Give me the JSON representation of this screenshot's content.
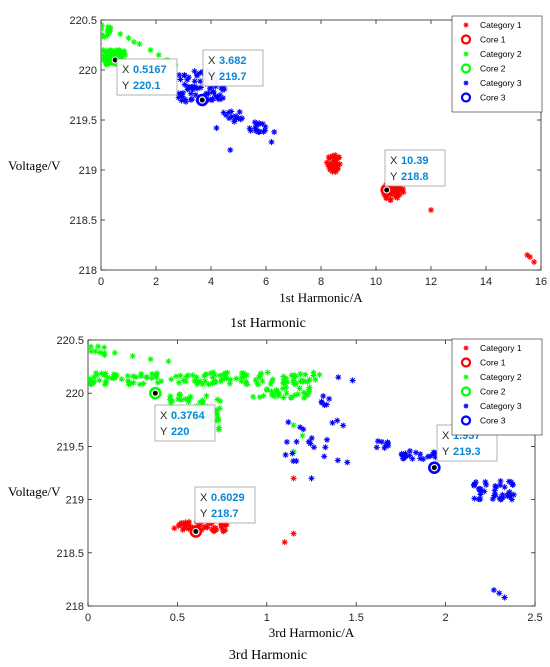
{
  "chart_data": [
    {
      "type": "scatter",
      "caption": "1st Harmonic",
      "xlabel": "1st Harmonic/A",
      "ylabel": "Voltage/V",
      "xlim": [
        0,
        16
      ],
      "ylim": [
        218,
        220.5
      ],
      "xticks": [
        "0",
        "2",
        "4",
        "6",
        "8",
        "10",
        "12",
        "14",
        "16"
      ],
      "yticks": [
        "218",
        "218.5",
        "219",
        "219.5",
        "220",
        "220.5"
      ],
      "legend_position": "top-right",
      "legend": [
        "Category 1",
        "Core 1",
        "Category 2",
        "Core 2",
        "Category 3",
        "Core 3"
      ],
      "colors": {
        "category1": "#ff0000",
        "category2": "#00ff00",
        "category3": "#0000ff"
      },
      "series": [
        {
          "name": "Category 1",
          "marker": "*",
          "color": "#ff0000",
          "clusters": [
            {
              "x": [
                8.2,
                8.7
              ],
              "y": [
                218.98,
                219.15
              ],
              "n": 40
            },
            {
              "x": [
                10.3,
                11.0
              ],
              "y": [
                218.7,
                218.86
              ],
              "n": 45
            }
          ],
          "points": [
            [
              12.0,
              218.6
            ],
            [
              15.6,
              218.13
            ],
            [
              15.75,
              218.08
            ],
            [
              15.5,
              218.15
            ]
          ]
        },
        {
          "name": "Category 2",
          "marker": "*",
          "color": "#00ff00",
          "clusters": [
            {
              "x": [
                0.05,
                0.9
              ],
              "y": [
                220.05,
                220.2
              ],
              "n": 70
            },
            {
              "x": [
                0.0,
                0.35
              ],
              "y": [
                220.33,
                220.45
              ],
              "n": 14
            }
          ],
          "points": [
            [
              1.0,
              220.32
            ],
            [
              1.4,
              220.26
            ],
            [
              1.8,
              220.2
            ],
            [
              2.1,
              220.15
            ],
            [
              2.4,
              220.1
            ],
            [
              2.7,
              220.05
            ],
            [
              0.7,
              220.36
            ],
            [
              1.2,
              220.28
            ]
          ]
        },
        {
          "name": "Category 3",
          "marker": "*",
          "color": "#0000ff",
          "clusters": [
            {
              "x": [
                2.8,
                4.5
              ],
              "y": [
                219.68,
                220.0
              ],
              "n": 70
            },
            {
              "x": [
                5.4,
                6.0
              ],
              "y": [
                219.38,
                219.48
              ],
              "n": 16
            },
            {
              "x": [
                4.4,
                5.2
              ],
              "y": [
                219.48,
                219.6
              ],
              "n": 12
            }
          ],
          "points": [
            [
              4.7,
              219.2
            ],
            [
              6.2,
              219.28
            ],
            [
              6.3,
              219.38
            ],
            [
              4.2,
              219.42
            ],
            [
              5.0,
              219.52
            ]
          ]
        },
        {
          "name": "Core 1",
          "marker": "o",
          "color": "#ff0000",
          "points": [
            [
              10.39,
              218.8
            ]
          ]
        },
        {
          "name": "Core 2",
          "marker": "o",
          "color": "#00ff00",
          "points": [
            [
              0.5167,
              220.1
            ]
          ]
        },
        {
          "name": "Core 3",
          "marker": "o",
          "color": "#0000ff",
          "points": [
            [
              3.682,
              219.7
            ]
          ]
        }
      ],
      "datatips": [
        {
          "x": 0.5167,
          "y": 220.1,
          "label_x": "X",
          "label_y": "Y",
          "text_x": "0.5167",
          "text_y": "220.1"
        },
        {
          "x": 3.682,
          "y": 219.7,
          "label_x": "X",
          "label_y": "Y",
          "text_x": "3.682",
          "text_y": "219.7"
        },
        {
          "x": 10.39,
          "y": 218.8,
          "label_x": "X",
          "label_y": "Y",
          "text_x": "10.39",
          "text_y": "218.8"
        }
      ]
    },
    {
      "type": "scatter",
      "caption": "3rd Harmonic",
      "xlabel": "3rd Harmonic/A",
      "ylabel": "Voltage/V",
      "xlim": [
        0,
        2.5
      ],
      "ylim": [
        218,
        220.5
      ],
      "xticks": [
        "0",
        "0.5",
        "1",
        "1.5",
        "2",
        "2.5"
      ],
      "yticks": [
        "218",
        "218.5",
        "219",
        "219.5",
        "220",
        "220.5"
      ],
      "legend_position": "top-right",
      "legend": [
        "Category 1",
        "Core 1",
        "Category 2",
        "Core 2",
        "Category 3",
        "Core 3"
      ],
      "colors": {
        "category1": "#ff0000",
        "category2": "#00ff00",
        "category3": "#0000ff"
      },
      "series": [
        {
          "name": "Category 1",
          "marker": "*",
          "color": "#ff0000",
          "clusters": [
            {
              "x": [
                0.48,
                0.78
              ],
              "y": [
                218.7,
                218.8
              ],
              "n": 60
            }
          ],
          "points": [
            [
              1.15,
              218.68
            ],
            [
              1.1,
              218.6
            ],
            [
              1.15,
              219.2
            ]
          ]
        },
        {
          "name": "Category 2",
          "marker": "*",
          "color": "#00ff00",
          "clusters": [
            {
              "x": [
                0.0,
                1.3
              ],
              "y": [
                220.08,
                220.2
              ],
              "n": 130
            },
            {
              "x": [
                0.45,
                0.75
              ],
              "y": [
                219.62,
                220.0
              ],
              "n": 70
            },
            {
              "x": [
                0.9,
                1.25
              ],
              "y": [
                219.95,
                220.06
              ],
              "n": 30
            },
            {
              "x": [
                0.0,
                0.1
              ],
              "y": [
                220.35,
                220.45
              ],
              "n": 8
            }
          ],
          "points": [
            [
              0.15,
              220.38
            ],
            [
              0.25,
              220.35
            ],
            [
              0.35,
              220.32
            ],
            [
              0.45,
              220.3
            ],
            [
              1.15,
              219.7
            ],
            [
              1.2,
              219.6
            ],
            [
              1.15,
              219.45
            ]
          ]
        },
        {
          "name": "Category 3",
          "marker": "*",
          "color": "#0000ff",
          "clusters": [
            {
              "x": [
                1.75,
                1.95
              ],
              "y": [
                219.38,
                219.46
              ],
              "n": 22
            },
            {
              "x": [
                2.15,
                2.4
              ],
              "y": [
                219.0,
                219.18
              ],
              "n": 40
            },
            {
              "x": [
                1.1,
                1.45
              ],
              "y": [
                219.35,
                219.75
              ],
              "n": 20
            },
            {
              "x": [
                1.6,
                1.68
              ],
              "y": [
                219.48,
                219.55
              ],
              "n": 8
            },
            {
              "x": [
                1.3,
                1.35
              ],
              "y": [
                219.85,
                219.98
              ],
              "n": 6
            }
          ],
          "points": [
            [
              1.4,
              220.15
            ],
            [
              1.48,
              220.12
            ],
            [
              2.3,
              218.12
            ],
            [
              2.27,
              218.15
            ],
            [
              2.33,
              218.08
            ],
            [
              1.45,
              219.35
            ],
            [
              1.25,
              219.2
            ]
          ]
        },
        {
          "name": "Core 1",
          "marker": "o",
          "color": "#ff0000",
          "points": [
            [
              0.6029,
              218.7
            ]
          ]
        },
        {
          "name": "Core 2",
          "marker": "o",
          "color": "#00ff00",
          "points": [
            [
              0.3764,
              220.0
            ]
          ]
        },
        {
          "name": "Core 3",
          "marker": "o",
          "color": "#0000ff",
          "points": [
            [
              1.937,
              219.3
            ]
          ]
        }
      ],
      "datatips": [
        {
          "x": 0.3764,
          "y": 220.0,
          "label_x": "X",
          "label_y": "Y",
          "text_x": "0.3764",
          "text_y": "220"
        },
        {
          "x": 0.6029,
          "y": 218.7,
          "label_x": "X",
          "label_y": "Y",
          "text_x": "0.6029",
          "text_y": "218.7"
        },
        {
          "x": 1.937,
          "y": 219.3,
          "label_x": "X",
          "label_y": "Y",
          "text_x": "1.937",
          "text_y": "219.3"
        }
      ]
    }
  ]
}
